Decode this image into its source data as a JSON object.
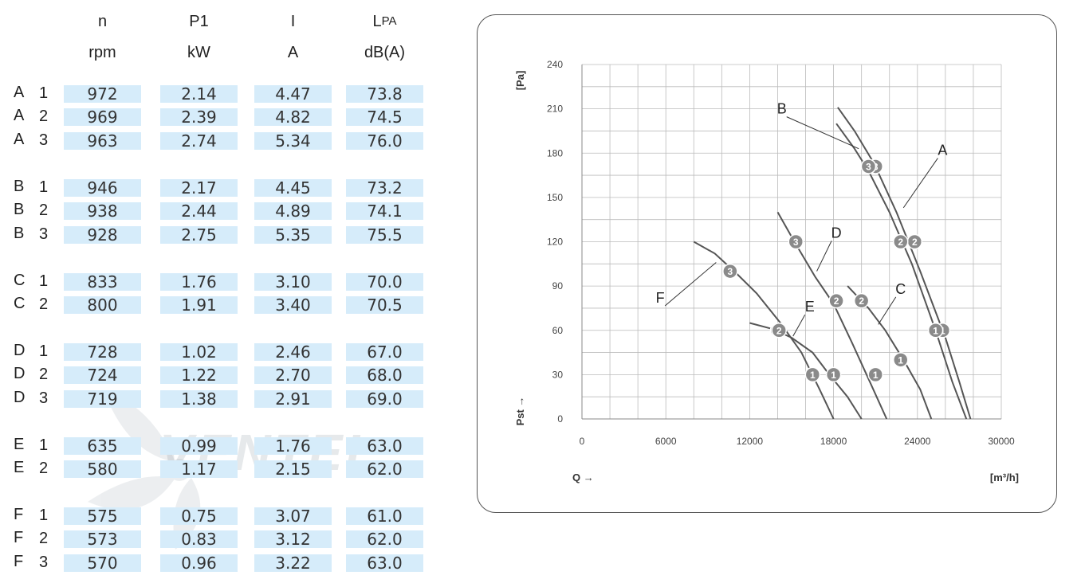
{
  "table": {
    "headers": [
      {
        "symbol": "n",
        "unit": "rpm"
      },
      {
        "symbol": "P1",
        "unit": "kW"
      },
      {
        "symbol": "I",
        "unit": "A"
      },
      {
        "symbol": "L",
        "symbol_sub": "PA",
        "unit": "dB(A)"
      }
    ],
    "rows": [
      {
        "curve": "A",
        "step": "1",
        "values": [
          "972",
          "2.14",
          "4.47",
          "73.8"
        ]
      },
      {
        "curve": "A",
        "step": "2",
        "values": [
          "969",
          "2.39",
          "4.82",
          "74.5"
        ]
      },
      {
        "curve": "A",
        "step": "3",
        "values": [
          "963",
          "2.74",
          "5.34",
          "76.0"
        ]
      },
      {
        "curve": "B",
        "step": "1",
        "values": [
          "946",
          "2.17",
          "4.45",
          "73.2"
        ]
      },
      {
        "curve": "B",
        "step": "2",
        "values": [
          "938",
          "2.44",
          "4.89",
          "74.1"
        ]
      },
      {
        "curve": "B",
        "step": "3",
        "values": [
          "928",
          "2.75",
          "5.35",
          "75.5"
        ]
      },
      {
        "curve": "C",
        "step": "1",
        "values": [
          "833",
          "1.76",
          "3.10",
          "70.0"
        ]
      },
      {
        "curve": "C",
        "step": "2",
        "values": [
          "800",
          "1.91",
          "3.40",
          "70.5"
        ]
      },
      {
        "curve": "D",
        "step": "1",
        "values": [
          "728",
          "1.02",
          "2.46",
          "67.0"
        ]
      },
      {
        "curve": "D",
        "step": "2",
        "values": [
          "724",
          "1.22",
          "2.70",
          "68.0"
        ]
      },
      {
        "curve": "D",
        "step": "3",
        "values": [
          "719",
          "1.38",
          "2.91",
          "69.0"
        ]
      },
      {
        "curve": "E",
        "step": "1",
        "values": [
          "635",
          "0.99",
          "1.76",
          "63.0"
        ]
      },
      {
        "curve": "E",
        "step": "2",
        "values": [
          "580",
          "1.17",
          "2.15",
          "62.0"
        ]
      },
      {
        "curve": "F",
        "step": "1",
        "values": [
          "575",
          "0.75",
          "3.07",
          "61.0"
        ]
      },
      {
        "curve": "F",
        "step": "2",
        "values": [
          "573",
          "0.83",
          "3.12",
          "62.0"
        ]
      },
      {
        "curve": "F",
        "step": "3",
        "values": [
          "570",
          "0.96",
          "3.22",
          "63.0"
        ]
      }
    ]
  },
  "watermark_text": "VENTEL",
  "colors": {
    "cell_bg": "#d6ecfa",
    "curve": "#555555",
    "marker": "#8a8a8a",
    "grid": "#bbbbbb"
  },
  "chart_data": {
    "type": "line",
    "xlabel": "Q →",
    "xunit": "[m³/h]",
    "ylabel": "Pst →",
    "yunit": "[Pa]",
    "xlim": [
      0,
      30000
    ],
    "ylim": [
      0,
      240
    ],
    "xticks": [
      0,
      6000,
      12000,
      18000,
      24000,
      30000
    ],
    "yticks": [
      0,
      30,
      60,
      90,
      120,
      150,
      180,
      210,
      240
    ],
    "grid": true,
    "series": [
      {
        "name": "A",
        "points": [
          [
            18300,
            211
          ],
          [
            19500,
            195
          ],
          [
            20900,
            173
          ],
          [
            22500,
            140
          ],
          [
            24200,
            100
          ],
          [
            26000,
            55
          ],
          [
            27000,
            25
          ],
          [
            27800,
            0
          ]
        ],
        "markers": [
          {
            "label": "3",
            "x": 21000,
            "y": 171
          },
          {
            "label": "2",
            "x": 23800,
            "y": 120
          },
          {
            "label": "1",
            "x": 25800,
            "y": 60
          }
        ]
      },
      {
        "name": "B",
        "points": [
          [
            18200,
            200
          ],
          [
            19500,
            183
          ],
          [
            20500,
            168
          ],
          [
            22000,
            140
          ],
          [
            23600,
            105
          ],
          [
            25300,
            60
          ],
          [
            26500,
            25
          ],
          [
            27500,
            0
          ]
        ],
        "markers": [
          {
            "label": "3",
            "x": 20500,
            "y": 171
          },
          {
            "label": "2",
            "x": 22800,
            "y": 120
          },
          {
            "label": "1",
            "x": 25300,
            "y": 60
          }
        ]
      },
      {
        "name": "C",
        "points": [
          [
            19000,
            90
          ],
          [
            20500,
            75
          ],
          [
            21700,
            60
          ],
          [
            23000,
            40
          ],
          [
            24200,
            20
          ],
          [
            25000,
            0
          ]
        ],
        "markers": [
          {
            "label": "2",
            "x": 20000,
            "y": 80
          },
          {
            "label": "1",
            "x": 22800,
            "y": 40
          }
        ]
      },
      {
        "name": "D",
        "points": [
          [
            14000,
            140
          ],
          [
            15200,
            120
          ],
          [
            16700,
            96
          ],
          [
            18000,
            78
          ],
          [
            19300,
            52
          ],
          [
            20600,
            25
          ],
          [
            21800,
            0
          ]
        ],
        "markers": [
          {
            "label": "3",
            "x": 15300,
            "y": 120
          },
          {
            "label": "2",
            "x": 18200,
            "y": 80
          },
          {
            "label": "1",
            "x": 21000,
            "y": 30
          }
        ]
      },
      {
        "name": "E",
        "points": [
          [
            12000,
            65
          ],
          [
            13600,
            61
          ],
          [
            15000,
            55
          ],
          [
            16500,
            45
          ],
          [
            17700,
            30
          ],
          [
            19000,
            15
          ],
          [
            20000,
            0
          ]
        ],
        "markers": [
          {
            "label": "2",
            "x": 14000,
            "y": 60
          },
          {
            "label": "1",
            "x": 18000,
            "y": 30
          }
        ]
      },
      {
        "name": "F",
        "points": [
          [
            8000,
            120
          ],
          [
            9500,
            112
          ],
          [
            11000,
            99
          ],
          [
            12500,
            85
          ],
          [
            14200,
            65
          ],
          [
            15700,
            45
          ],
          [
            17000,
            20
          ],
          [
            18000,
            0
          ]
        ],
        "markers": [
          {
            "label": "3",
            "x": 10600,
            "y": 100
          },
          {
            "label": "2",
            "x": 14100,
            "y": 60
          },
          {
            "label": "1",
            "x": 16500,
            "y": 30
          }
        ]
      }
    ],
    "curve_labels": [
      {
        "name": "A",
        "x": 25800,
        "y": 182,
        "lead_to": [
          23000,
          143
        ]
      },
      {
        "name": "B",
        "x": 14300,
        "y": 210,
        "lead_to": [
          19800,
          183
        ]
      },
      {
        "name": "C",
        "x": 22800,
        "y": 88,
        "lead_to": [
          21200,
          64
        ]
      },
      {
        "name": "D",
        "x": 18200,
        "y": 126,
        "lead_to": [
          16800,
          100
        ]
      },
      {
        "name": "E",
        "x": 16300,
        "y": 76,
        "lead_to": [
          15100,
          56
        ]
      },
      {
        "name": "F",
        "x": 5600,
        "y": 82,
        "lead_to": [
          9600,
          106
        ]
      }
    ]
  }
}
